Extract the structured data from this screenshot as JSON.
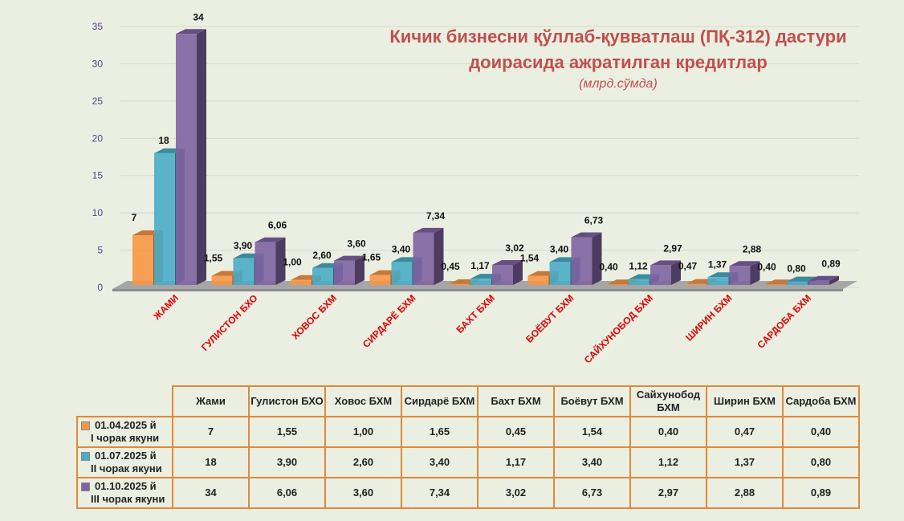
{
  "chart_data": {
    "type": "bar",
    "title": "Кичик бизнесни қўллаб-қувватлаш (ПҚ-312) дастури доирасида ажратилган кредитлар",
    "title_line1": "Кичик бизнесни қўллаб-қувватлаш (ПҚ-312) дастури",
    "title_line2": "доирасида ажратилган кредитлар",
    "subtitle": "(млрд.сўмда)",
    "categories": [
      "Жами",
      "Гулистон БХО",
      "Ховос БХМ",
      "Сирдарё БХМ",
      "Бахт БХМ",
      "Боёвут БХМ",
      "Сайхунобод БХМ",
      "Ширин БХМ",
      "Сардоба БХМ"
    ],
    "category_labels": [
      "ЖАМИ",
      "ГУЛИСТОН БХО",
      "ХОВОС БХМ",
      "СИРДАРЁ БХМ",
      "БАХТ БХМ",
      "БОЁВУТ БХМ",
      "САЙХУНОБОД БХМ",
      "ШИРИН БХМ",
      "САРДОБА БХМ"
    ],
    "series": [
      {
        "name": "01.04.2025 й I чорак якуни",
        "line1": "01.04.2025 й",
        "line2": "I чорак якуни",
        "color": "#f79646",
        "values": [
          7,
          1.55,
          1.0,
          1.65,
          0.45,
          1.54,
          0.4,
          0.47,
          0.4
        ],
        "labels": [
          "7",
          "1,55",
          "1,00",
          "1,65",
          "0,45",
          "1,54",
          "0,40",
          "0,47",
          "0,40"
        ]
      },
      {
        "name": "01.07.2025 й II чорак якуни",
        "line1": "01.07.2025 й",
        "line2": "II чорак якуни",
        "color": "#4bacc6",
        "values": [
          18,
          3.9,
          2.6,
          3.4,
          1.17,
          3.4,
          1.12,
          1.37,
          0.8
        ],
        "labels": [
          "18",
          "3,90",
          "2,60",
          "3,40",
          "1,17",
          "3,40",
          "1,12",
          "1,37",
          "0,80"
        ]
      },
      {
        "name": "01.10.2025 й III чорак якуни",
        "line1": "01.10.2025 й",
        "line2": "III чорак якуни",
        "color": "#8064a2",
        "values": [
          34,
          6.06,
          3.6,
          7.34,
          3.02,
          6.73,
          2.97,
          2.88,
          0.89
        ],
        "labels": [
          "34",
          "6,06",
          "3,60",
          "7,34",
          "3,02",
          "6,73",
          "2,97",
          "2,88",
          "0,89"
        ]
      }
    ],
    "ylim": [
      0,
      35
    ],
    "yticks": [
      "0",
      "5",
      "10",
      "15",
      "20",
      "25",
      "30",
      "35"
    ],
    "grid": true,
    "legend": "data table below chart"
  }
}
